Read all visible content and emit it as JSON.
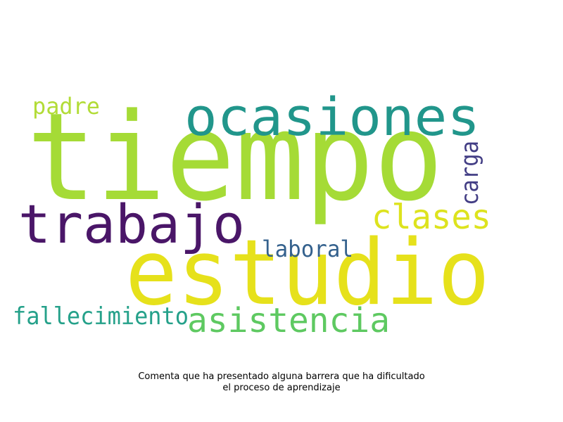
{
  "wordcloud": {
    "words": {
      "tiempo": {
        "text": "tiempo",
        "color": "#a5db36"
      },
      "ocasiones": {
        "text": "ocasiones",
        "color": "#21968b"
      },
      "trabajo": {
        "text": "trabajo",
        "color": "#4a1668"
      },
      "estudio": {
        "text": "estudio",
        "color": "#e6e11b"
      },
      "clases": {
        "text": "clases",
        "color": "#dde31e"
      },
      "asistencia": {
        "text": "asistencia",
        "color": "#5ec961"
      },
      "fallecimiento": {
        "text": "fallecimiento",
        "color": "#25a18a"
      },
      "laboral": {
        "text": "laboral",
        "color": "#34618d"
      },
      "padre": {
        "text": "padre",
        "color": "#b2dc37"
      },
      "carga": {
        "text": "carga",
        "color": "#433e85"
      }
    }
  },
  "caption": {
    "line1": "Comenta que ha presentado alguna barrera que ha dificultado",
    "line2": "el proceso de aprendizaje"
  }
}
